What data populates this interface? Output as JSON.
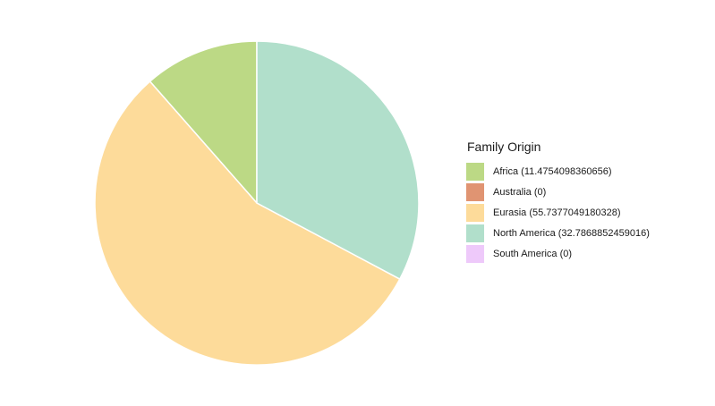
{
  "chart_data": {
    "type": "pie",
    "legend_title": "Family Origin",
    "legend_position": "right",
    "start_angle": "12 o'clock, clockwise",
    "slices": [
      {
        "label": "Africa (11.4754098360656)",
        "value": 11.4754098360656,
        "color": "#BCD985"
      },
      {
        "label": "Australia (0)",
        "value": 0,
        "color": "#E09472"
      },
      {
        "label": "Eurasia (55.7377049180328)",
        "value": 55.7377049180328,
        "color": "#FDDB9A"
      },
      {
        "label": "North America (32.7868852459016)",
        "value": 32.7868852459016,
        "color": "#B1DFCB"
      },
      {
        "label": "South America (0)",
        "value": 0,
        "color": "#EEC9FA"
      }
    ]
  }
}
